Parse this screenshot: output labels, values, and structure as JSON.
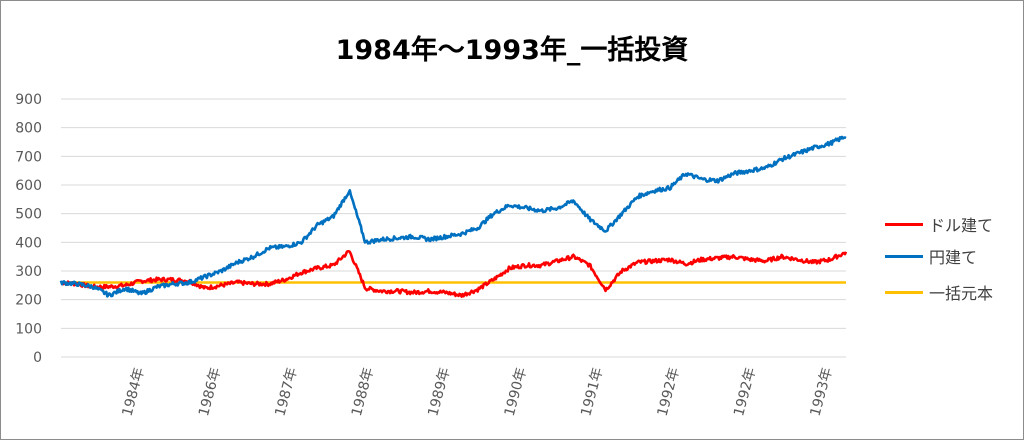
{
  "chart_data": {
    "type": "line",
    "title": "1984年～1993年_一括投資",
    "xlabel": "",
    "ylabel": "",
    "ylim": [
      0,
      900
    ],
    "yticks": [
      "0",
      "100",
      "200",
      "300",
      "400",
      "500",
      "600",
      "700",
      "800",
      "900"
    ],
    "x_tick_labels": [
      "1984年",
      "1986年",
      "1987年",
      "1988年",
      "1989年",
      "1990年",
      "1991年",
      "1992年",
      "1992年",
      "1993年"
    ],
    "grid": true,
    "legend_position": "right",
    "series": [
      {
        "name": "ドル建て",
        "color": "#ff0000",
        "values": [
          260,
          255,
          245,
          245,
          250,
          265,
          270,
          270,
          265,
          240,
          250,
          260,
          255,
          255,
          270,
          295,
          310,
          320,
          370,
          240,
          230,
          230,
          225,
          230,
          225,
          215,
          235,
          270,
          310,
          320,
          320,
          335,
          350,
          320,
          235,
          300,
          330,
          335,
          340,
          325,
          340,
          345,
          350,
          340,
          335,
          350,
          340,
          330,
          340,
          365
        ]
      },
      {
        "name": "円建て",
        "color": "#0070c0",
        "values": [
          260,
          255,
          245,
          215,
          240,
          220,
          245,
          255,
          260,
          280,
          300,
          330,
          350,
          380,
          385,
          400,
          460,
          490,
          580,
          400,
          410,
          415,
          420,
          410,
          420,
          430,
          450,
          500,
          530,
          520,
          510,
          520,
          545,
          480,
          440,
          500,
          560,
          580,
          590,
          640,
          620,
          615,
          640,
          650,
          660,
          690,
          710,
          730,
          745,
          770
        ]
      },
      {
        "name": "一括元本",
        "color": "#ffc000",
        "values": [
          260,
          260,
          260,
          260,
          260,
          260,
          260,
          260,
          260,
          260,
          260,
          260,
          260,
          260,
          260,
          260,
          260,
          260,
          260,
          260,
          260,
          260,
          260,
          260,
          260,
          260,
          260,
          260,
          260,
          260,
          260,
          260,
          260,
          260,
          260,
          260,
          260,
          260,
          260,
          260,
          260,
          260,
          260,
          260,
          260,
          260,
          260,
          260,
          260,
          260
        ]
      }
    ]
  }
}
